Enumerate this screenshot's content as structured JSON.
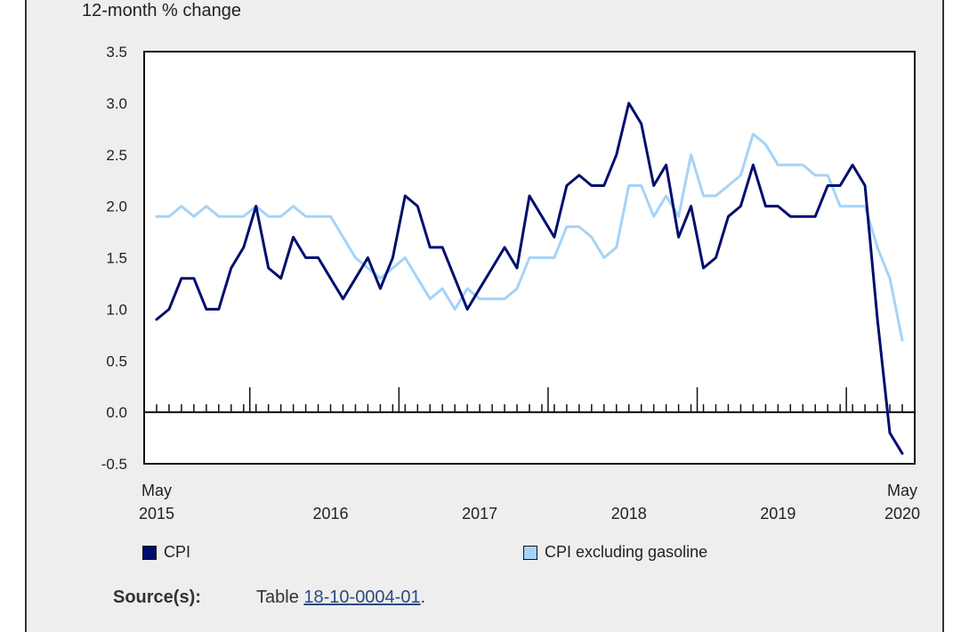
{
  "colors": {
    "cpi": "#000e6e",
    "cpi_ex_gas": "#a5d3f7",
    "panel_bg": "#eeeeee",
    "plot_bg": "#ffffff"
  },
  "units_label": "12-month % change",
  "legend": {
    "cpi": "CPI",
    "cpi_ex_gas": "CPI excluding gasoline"
  },
  "source": {
    "label": "Source(s):",
    "prefix": "Table",
    "link": "18-10-0004-01",
    "suffix": "."
  },
  "chart_data": {
    "type": "line",
    "title": "",
    "ylabel": "12-month % change",
    "ylim": [
      -0.5,
      3.5
    ],
    "yticks": [
      "3.5",
      "3.0",
      "2.5",
      "2.0",
      "1.5",
      "1.0",
      "0.5",
      "0.0",
      "-0.5"
    ],
    "ytick_values": [
      3.5,
      3.0,
      2.5,
      2.0,
      1.5,
      1.0,
      0.5,
      0.0,
      -0.5
    ],
    "x_start": "May 2015",
    "x_end": "May 2020",
    "n_points": 61,
    "x_labels": [
      {
        "index": 0,
        "top": "May",
        "bottom": "2015"
      },
      {
        "index": 14,
        "top": "",
        "bottom": "2016"
      },
      {
        "index": 26,
        "top": "",
        "bottom": "2017"
      },
      {
        "index": 38,
        "top": "",
        "bottom": "2018"
      },
      {
        "index": 50,
        "top": "",
        "bottom": "2019"
      },
      {
        "index": 60,
        "top": "May",
        "bottom": "2020"
      }
    ],
    "year_boundaries_after_index": [
      7,
      19,
      31,
      43,
      55
    ],
    "series": [
      {
        "name": "CPI",
        "values": [
          0.9,
          1.0,
          1.3,
          1.3,
          1.0,
          1.0,
          1.4,
          1.6,
          2.0,
          1.4,
          1.3,
          1.7,
          1.5,
          1.5,
          1.3,
          1.1,
          1.3,
          1.5,
          1.2,
          1.5,
          2.1,
          2.0,
          1.6,
          1.6,
          1.3,
          1.0,
          1.2,
          1.4,
          1.6,
          1.4,
          2.1,
          1.9,
          1.7,
          2.2,
          2.3,
          2.2,
          2.2,
          2.5,
          3.0,
          2.8,
          2.2,
          2.4,
          1.7,
          2.0,
          1.4,
          1.5,
          1.9,
          2.0,
          2.4,
          2.0,
          2.0,
          1.9,
          1.9,
          1.9,
          2.2,
          2.2,
          2.4,
          2.2,
          0.9,
          -0.2,
          -0.4
        ]
      },
      {
        "name": "CPI excluding gasoline",
        "values": [
          1.9,
          1.9,
          2.0,
          1.9,
          2.0,
          1.9,
          1.9,
          1.9,
          2.0,
          1.9,
          1.9,
          2.0,
          1.9,
          1.9,
          1.9,
          1.7,
          1.5,
          1.4,
          1.3,
          1.4,
          1.5,
          1.3,
          1.1,
          1.2,
          1.0,
          1.2,
          1.1,
          1.1,
          1.1,
          1.2,
          1.5,
          1.5,
          1.5,
          1.8,
          1.8,
          1.7,
          1.5,
          1.6,
          2.2,
          2.2,
          1.9,
          2.1,
          1.9,
          2.5,
          2.1,
          2.1,
          2.2,
          2.3,
          2.7,
          2.6,
          2.4,
          2.4,
          2.4,
          2.3,
          2.3,
          2.0,
          2.0,
          2.0,
          1.6,
          1.3,
          0.7
        ]
      }
    ]
  }
}
